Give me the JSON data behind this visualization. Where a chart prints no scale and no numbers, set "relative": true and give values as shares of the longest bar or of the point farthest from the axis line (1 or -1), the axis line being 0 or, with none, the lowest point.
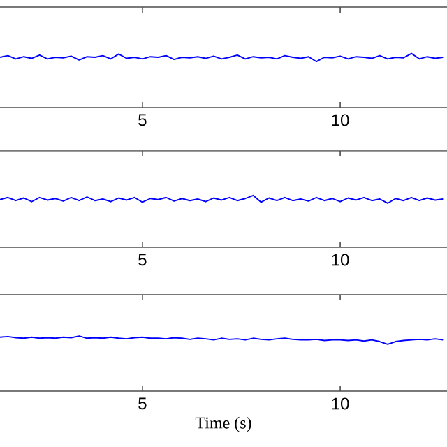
{
  "chart_data": [
    {
      "type": "line",
      "relative": true,
      "tick_labels": "x",
      "xlim": [
        1.4,
        12.7
      ],
      "xticks": [
        5,
        10
      ],
      "x": [
        1.4,
        1.6,
        1.8,
        2.0,
        2.2,
        2.4,
        2.6,
        2.8,
        3.0,
        3.2,
        3.4,
        3.6,
        3.8,
        4.0,
        4.2,
        4.4,
        4.6,
        4.8,
        5.0,
        5.2,
        5.4,
        5.6,
        5.8,
        6.0,
        6.2,
        6.4,
        6.6,
        6.8,
        7.0,
        7.2,
        7.4,
        7.6,
        7.8,
        8.0,
        8.2,
        8.4,
        8.6,
        8.8,
        9.0,
        9.2,
        9.4,
        9.6,
        9.8,
        10.0,
        10.2,
        10.4,
        10.6,
        10.8,
        11.0,
        11.2,
        11.4,
        11.6,
        11.8,
        12.0,
        12.2,
        12.4,
        12.6
      ],
      "series": [
        {
          "color": "#0000ff",
          "values": [
            0.93,
            0.96,
            0.9,
            0.94,
            0.91,
            0.97,
            0.9,
            0.93,
            0.92,
            0.95,
            0.88,
            0.94,
            0.93,
            0.96,
            0.9,
            0.99,
            0.91,
            0.93,
            0.9,
            0.94,
            0.93,
            0.96,
            0.89,
            0.93,
            0.92,
            0.94,
            0.91,
            0.95,
            0.9,
            0.93,
            0.97,
            0.9,
            0.94,
            0.92,
            0.93,
            0.9,
            0.96,
            0.93,
            0.91,
            0.94,
            0.85,
            0.93,
            0.92,
            0.95,
            0.9,
            0.94,
            0.93,
            0.91,
            0.96,
            0.9,
            0.93,
            0.92,
            1.0,
            0.9,
            0.94,
            0.91,
            0.93
          ]
        }
      ]
    },
    {
      "type": "line",
      "relative": true,
      "tick_labels": "x",
      "xlim": [
        1.4,
        12.7
      ],
      "xticks": [
        5,
        10
      ],
      "x": [
        1.4,
        1.6,
        1.8,
        2.0,
        2.2,
        2.4,
        2.6,
        2.8,
        3.0,
        3.2,
        3.4,
        3.6,
        3.8,
        4.0,
        4.2,
        4.4,
        4.6,
        4.8,
        5.0,
        5.2,
        5.4,
        5.6,
        5.8,
        6.0,
        6.2,
        6.4,
        6.6,
        6.8,
        7.0,
        7.2,
        7.4,
        7.6,
        7.8,
        8.0,
        8.2,
        8.4,
        8.6,
        8.8,
        9.0,
        9.2,
        9.4,
        9.6,
        9.8,
        10.0,
        10.2,
        10.4,
        10.6,
        10.8,
        11.0,
        11.2,
        11.4,
        11.6,
        11.8,
        12.0,
        12.2,
        12.4,
        12.6
      ],
      "series": [
        {
          "color": "#0000ff",
          "values": [
            0.92,
            0.96,
            0.9,
            0.95,
            0.88,
            0.96,
            0.91,
            0.94,
            0.89,
            0.96,
            0.9,
            0.97,
            0.9,
            0.93,
            0.88,
            0.95,
            0.91,
            0.96,
            0.87,
            0.94,
            0.92,
            0.96,
            0.89,
            0.94,
            0.9,
            0.93,
            0.88,
            0.95,
            0.91,
            0.96,
            0.9,
            0.94,
            1.0,
            0.87,
            0.95,
            0.9,
            0.96,
            0.9,
            0.93,
            0.89,
            0.96,
            0.9,
            0.94,
            0.88,
            0.95,
            0.91,
            0.96,
            0.9,
            0.93,
            0.85,
            0.94,
            0.9,
            0.96,
            0.9,
            0.95,
            0.91,
            0.93
          ]
        }
      ]
    },
    {
      "type": "line",
      "relative": true,
      "tick_labels": "x",
      "xlim": [
        1.4,
        12.7
      ],
      "xticks": [
        5,
        10
      ],
      "xlabel": "Time (s)",
      "x": [
        1.4,
        1.6,
        1.8,
        2.0,
        2.2,
        2.4,
        2.6,
        2.8,
        3.0,
        3.2,
        3.4,
        3.6,
        3.8,
        4.0,
        4.2,
        4.4,
        4.6,
        4.8,
        5.0,
        5.2,
        5.4,
        5.6,
        5.8,
        6.0,
        6.2,
        6.4,
        6.6,
        6.8,
        7.0,
        7.2,
        7.4,
        7.6,
        7.8,
        8.0,
        8.2,
        8.4,
        8.6,
        8.8,
        9.0,
        9.2,
        9.4,
        9.6,
        9.8,
        10.0,
        10.2,
        10.4,
        10.6,
        10.8,
        11.0,
        11.2,
        11.4,
        11.6,
        11.8,
        12.0,
        12.2,
        12.4,
        12.6
      ],
      "series": [
        {
          "color": "#0000ff",
          "values": [
            0.98,
            0.99,
            0.97,
            0.96,
            0.98,
            0.96,
            0.97,
            0.96,
            0.98,
            0.97,
            1.0,
            0.96,
            0.97,
            0.96,
            0.98,
            0.96,
            0.95,
            0.97,
            0.98,
            0.96,
            0.96,
            0.95,
            0.97,
            0.96,
            0.94,
            0.96,
            0.95,
            0.93,
            0.96,
            0.94,
            0.95,
            0.93,
            0.96,
            0.94,
            0.93,
            0.95,
            0.96,
            0.94,
            0.93,
            0.93,
            0.94,
            0.92,
            0.93,
            0.93,
            0.92,
            0.93,
            0.91,
            0.93,
            0.9,
            0.85,
            0.9,
            0.92,
            0.93,
            0.94,
            0.93,
            0.95,
            0.93
          ]
        }
      ]
    }
  ]
}
